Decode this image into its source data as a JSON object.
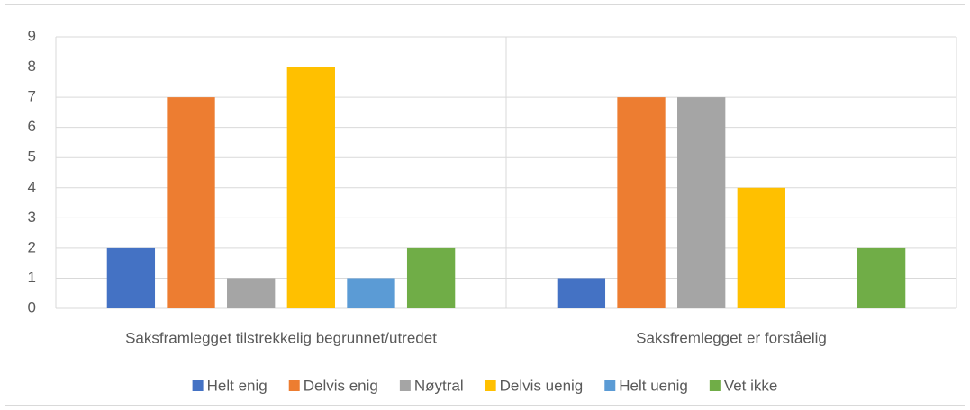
{
  "chart_data": {
    "type": "bar",
    "categories": [
      "Saksframlegget tilstrekkelig begrunnet/utredet",
      "Saksfremlegget er forståelig"
    ],
    "series": [
      {
        "name": "Helt enig",
        "color": "#4472c4",
        "values": [
          2,
          1
        ]
      },
      {
        "name": "Delvis enig",
        "color": "#ed7d31",
        "values": [
          7,
          7
        ]
      },
      {
        "name": "Nøytral",
        "color": "#a5a5a5",
        "values": [
          1,
          7
        ]
      },
      {
        "name": "Delvis uenig",
        "color": "#ffc000",
        "values": [
          8,
          4
        ]
      },
      {
        "name": "Helt uenig",
        "color": "#5b9bd5",
        "values": [
          1,
          0
        ]
      },
      {
        "name": "Vet ikke",
        "color": "#70ad47",
        "values": [
          2,
          2
        ]
      }
    ],
    "ylim": [
      0,
      9
    ],
    "yticks": [
      0,
      1,
      2,
      3,
      4,
      5,
      6,
      7,
      8,
      9
    ],
    "grid": true,
    "legend": "bottom"
  }
}
